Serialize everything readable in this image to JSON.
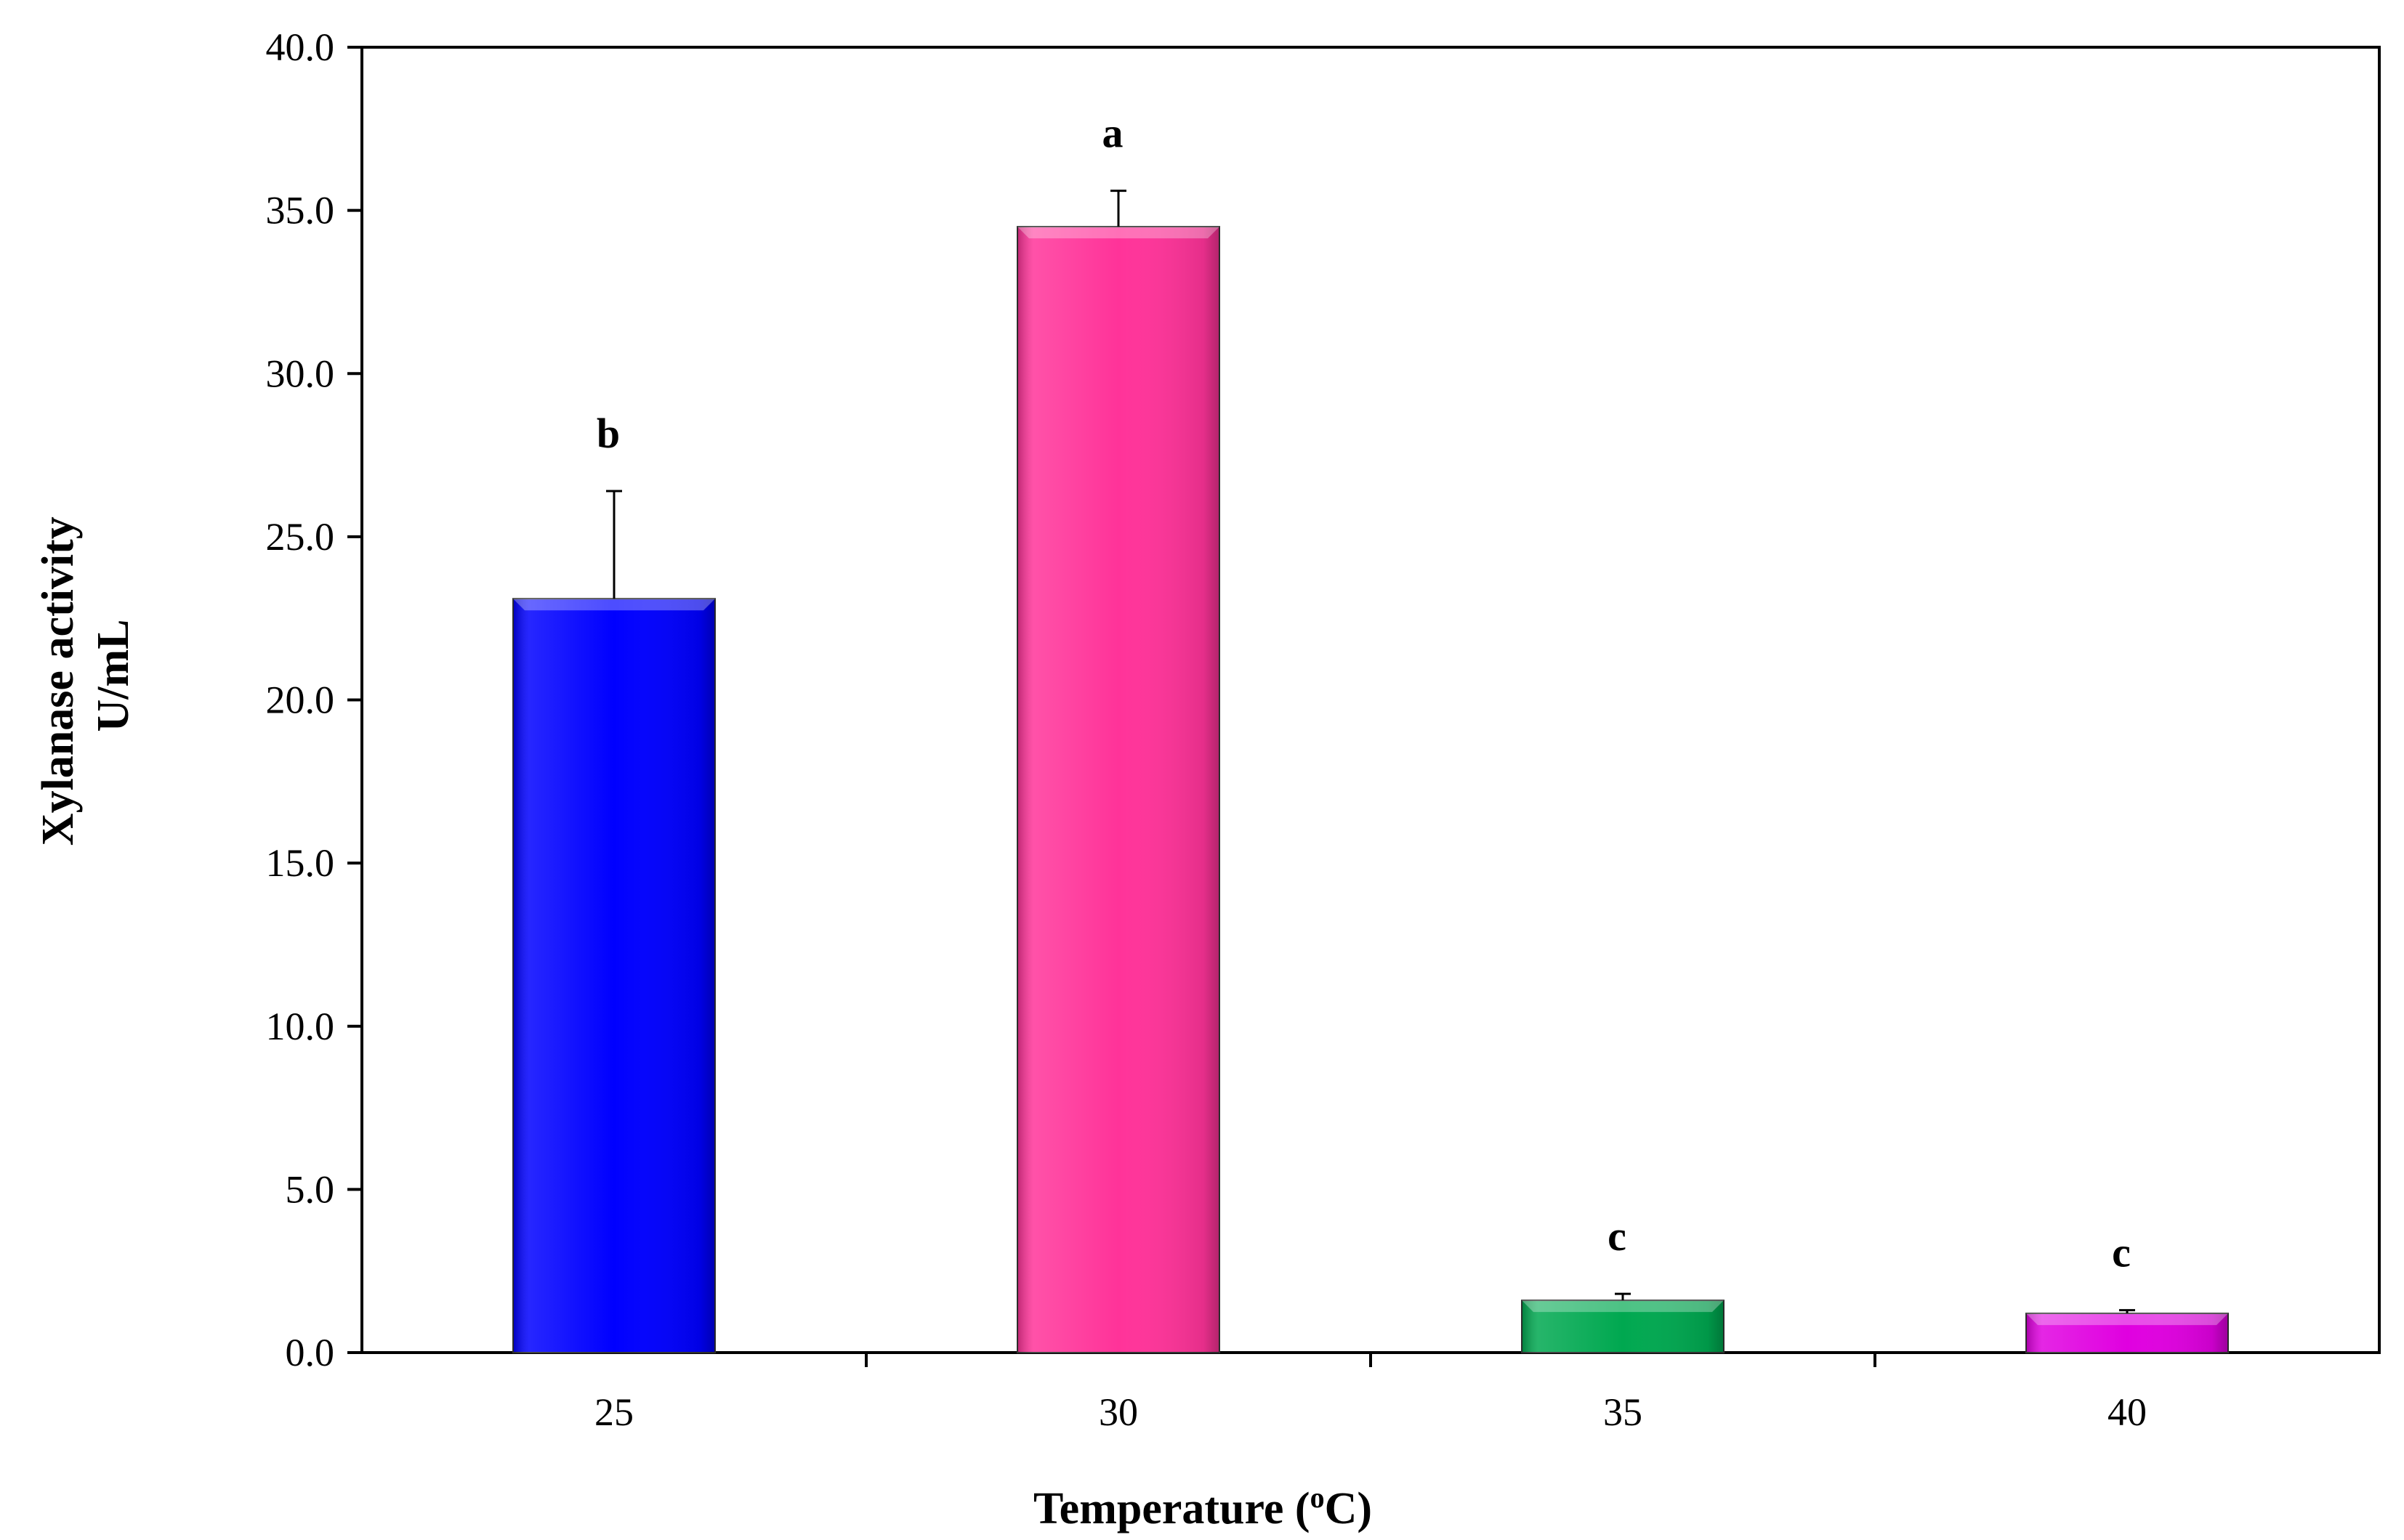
{
  "chart_data": {
    "type": "bar",
    "title": "",
    "xlabel": "Temperature (",
    "xlabel_sup": "o",
    "xlabel_end": "C)",
    "ylabel_line1": "Xylanase activity",
    "ylabel_line2": "U/mL",
    "categories": [
      "25",
      "30",
      "35",
      "40"
    ],
    "values": [
      23.1,
      34.5,
      1.6,
      1.2
    ],
    "errors": [
      3.3,
      1.1,
      0.2,
      0.1
    ],
    "significance": [
      "b",
      "a",
      "c",
      "c"
    ],
    "colors": [
      "#0000ff",
      "#ff3399",
      "#00a850",
      "#e000e0"
    ],
    "ylim": [
      0,
      40
    ],
    "yticks": [
      "0.0",
      "5.0",
      "10.0",
      "15.0",
      "20.0",
      "25.0",
      "30.0",
      "35.0",
      "40.0"
    ],
    "grid": false,
    "legend": "none"
  }
}
